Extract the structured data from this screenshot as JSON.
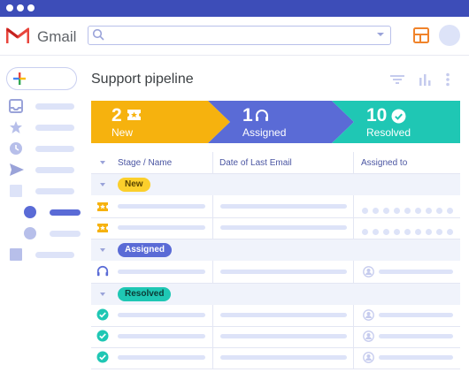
{
  "app": {
    "name": "Gmail"
  },
  "search": {
    "placeholder": ""
  },
  "page": {
    "title": "Support pipeline"
  },
  "stages": [
    {
      "count": "2",
      "label": "New",
      "color": "#f6b20e"
    },
    {
      "count": "1",
      "label": "Assigned",
      "color": "#5a6bd6"
    },
    {
      "count": "10",
      "label": "Resolved",
      "color": "#1fc7b4"
    }
  ],
  "table": {
    "headers": {
      "stage": "Stage / Name",
      "date": "Date of Last Email",
      "assigned": "Assigned to"
    },
    "groups": [
      {
        "label": "New",
        "pill_bg": "#fbcf2c",
        "pill_fg": "#5a4500",
        "rows": 2,
        "icon": "ticket-icon",
        "assigned": "avatar-dots"
      },
      {
        "label": "Assigned",
        "pill_bg": "#5a6bd6",
        "pill_fg": "#ffffff",
        "rows": 1,
        "icon": "headset-icon",
        "assigned": "user-icon"
      },
      {
        "label": "Resolved",
        "pill_bg": "#1fc7b4",
        "pill_fg": "#0b3b36",
        "rows": 3,
        "icon": "check-circle-icon",
        "assigned": "user-icon"
      }
    ]
  },
  "colors": {
    "titlebar": "#3d4db8",
    "accent": "#5a6bd6",
    "placeholder_bar": "#dde3f8"
  }
}
